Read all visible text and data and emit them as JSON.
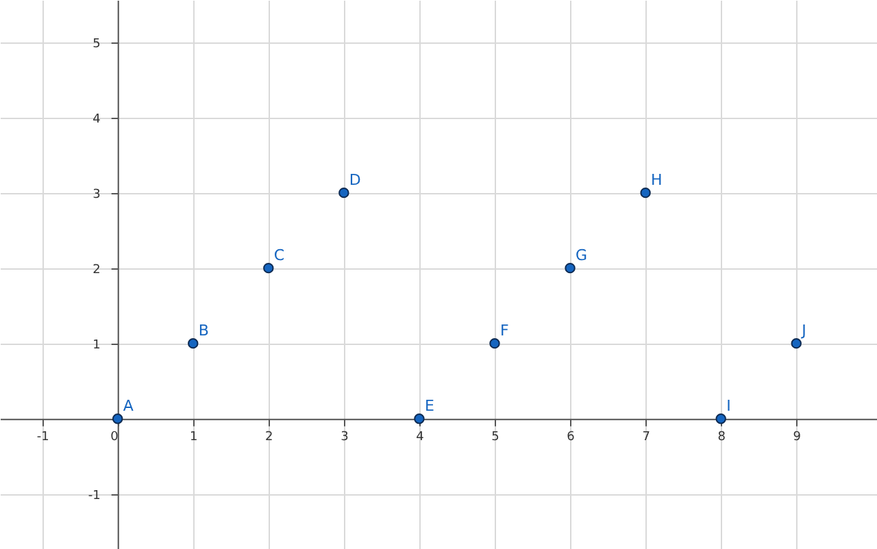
{
  "chart_data": {
    "type": "scatter",
    "x": [
      0,
      1,
      2,
      3,
      4,
      5,
      6,
      7,
      8,
      9
    ],
    "series": [
      {
        "color": "#1565c0",
        "values": [
          0,
          1,
          2,
          3,
          0,
          1,
          2,
          3,
          0,
          1
        ]
      }
    ],
    "xlim": [
      -1.56,
      10.07
    ],
    "ylim": [
      -1.73,
      5.56
    ],
    "xticks": [
      -1,
      0,
      1,
      2,
      3,
      4,
      5,
      6,
      7,
      8,
      9
    ],
    "yticks": [
      -1,
      {
        "value": 0,
        "label": null
      },
      1,
      2,
      3,
      4,
      5
    ],
    "grid": true,
    "marker": "circle",
    "annotations": [
      {
        "text": "A",
        "x": 0,
        "y": 0
      },
      {
        "text": "B",
        "x": 1,
        "y": 1
      },
      {
        "text": "C",
        "x": 2,
        "y": 2
      },
      {
        "text": "D",
        "x": 3,
        "y": 3
      },
      {
        "text": "E",
        "x": 4,
        "y": 0
      },
      {
        "text": "F",
        "x": 5,
        "y": 1
      },
      {
        "text": "G",
        "x": 6,
        "y": 2
      },
      {
        "text": "H",
        "x": 7,
        "y": 3
      },
      {
        "text": "I",
        "x": 8,
        "y": 0
      },
      {
        "text": "J",
        "x": 9,
        "y": 1
      }
    ]
  }
}
